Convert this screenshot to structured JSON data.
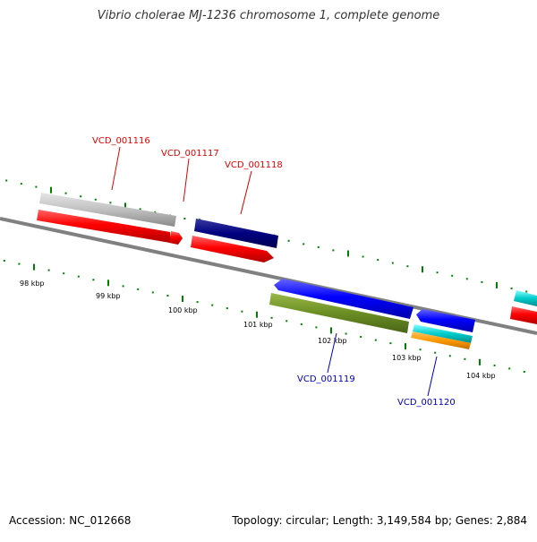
{
  "title": "Vibrio cholerae MJ-1236 chromosome 1, complete genome",
  "footer": {
    "accession": "Accession: NC_012668",
    "summary": "Topology: circular; Length: 3,149,584 bp; Genes: 2,884"
  },
  "ruler": {
    "unit": "kbp",
    "ticks": [
      "98 kbp",
      "99 kbp",
      "100 kbp",
      "101 kbp",
      "102 kbp",
      "103 kbp",
      "104 kbp"
    ]
  },
  "gene_labels": [
    {
      "id": "VCD_001116",
      "strand": "forward",
      "color": "#dd0000"
    },
    {
      "id": "VCD_001117",
      "strand": "forward",
      "color": "#dd0000"
    },
    {
      "id": "VCD_001118",
      "strand": "forward",
      "color": "#dd0000"
    },
    {
      "id": "VCD_001119",
      "strand": "reverse",
      "color": "#0000bb"
    },
    {
      "id": "VCD_001120",
      "strand": "reverse",
      "color": "#0000bb"
    }
  ],
  "colors": {
    "backbone": "#808080",
    "tick": "#008000",
    "cds_forward": "#ff0000",
    "cds_reverse": "#0000ff",
    "feature_grey": "#c0c0c0",
    "feature_navy": "#000080",
    "feature_olive": "#6b8e23",
    "feature_cyan": "#00cccc",
    "feature_orange": "#ff9900"
  }
}
